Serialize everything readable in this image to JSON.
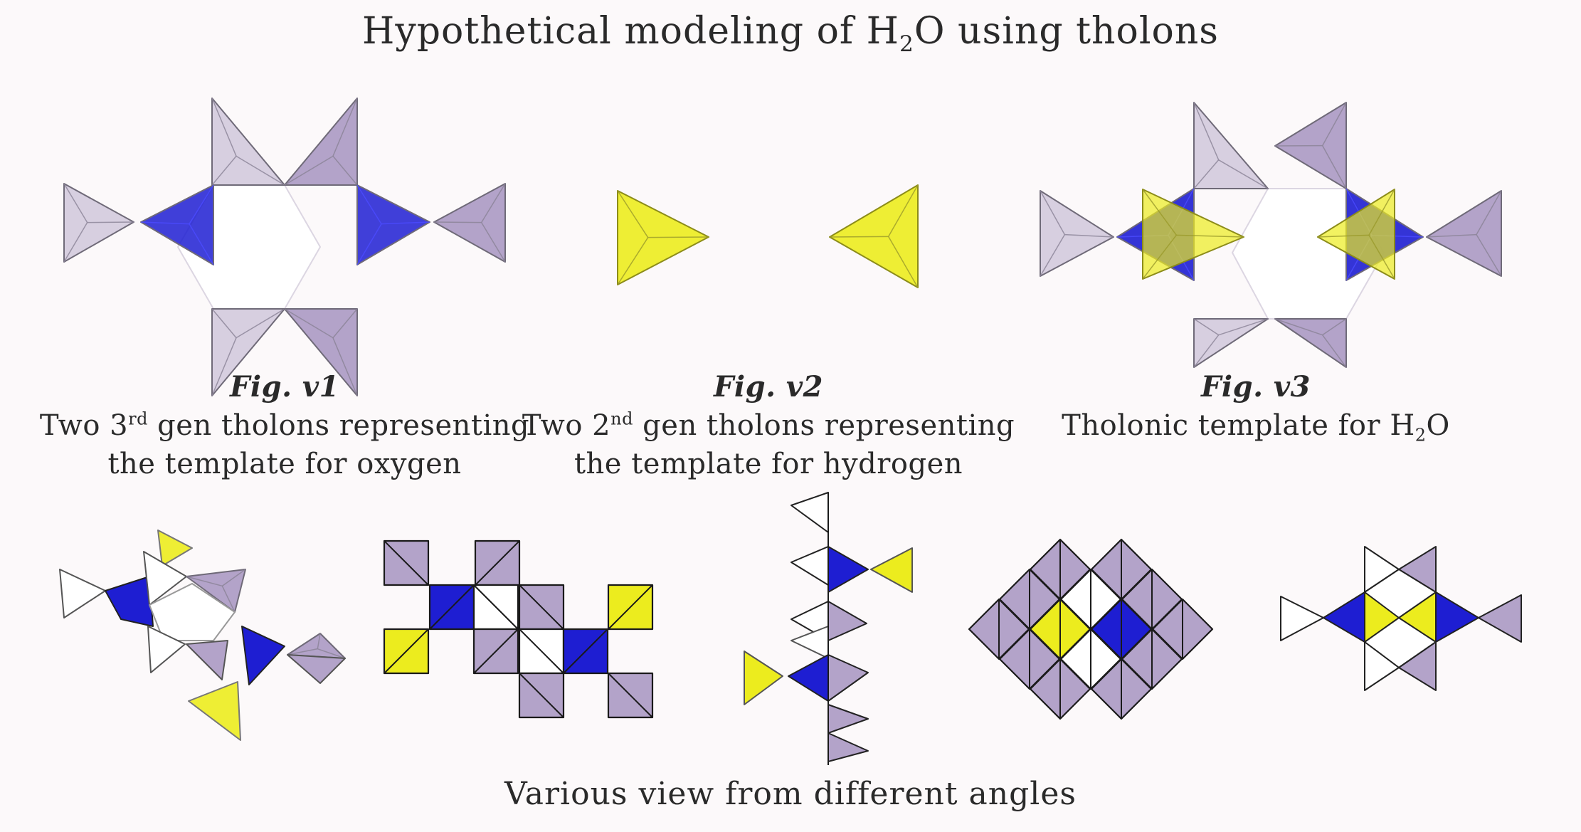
{
  "title": {
    "prefix": "Hypothetical modeling of H",
    "sub": "2",
    "suffix": "O using tholons"
  },
  "figures": [
    {
      "label": "Fig. v1",
      "line1_pre": "Two 3",
      "line1_sup": "rd",
      "line1_post": " gen tholons representing",
      "line2": "the template for oxygen"
    },
    {
      "label": "Fig. v2",
      "line1_pre": "Two 2",
      "line1_sup": "nd",
      "line1_post": " gen tholons representing",
      "line2": "the template for hydrogen"
    },
    {
      "label": "Fig. v3",
      "line1_pre": "Tholonic template for H",
      "line1_sub": "2",
      "line1_post": "O"
    }
  ],
  "bottom_caption": "Various view from different angles",
  "colors": {
    "background": "#fcf9fa",
    "lavender_light": "#d7cfe0",
    "lavender": "#b3a3c9",
    "blue": "#1e1ed2",
    "yellow": "#ecec1e",
    "white": "#ffffff",
    "edge": "#1a1a1a"
  }
}
